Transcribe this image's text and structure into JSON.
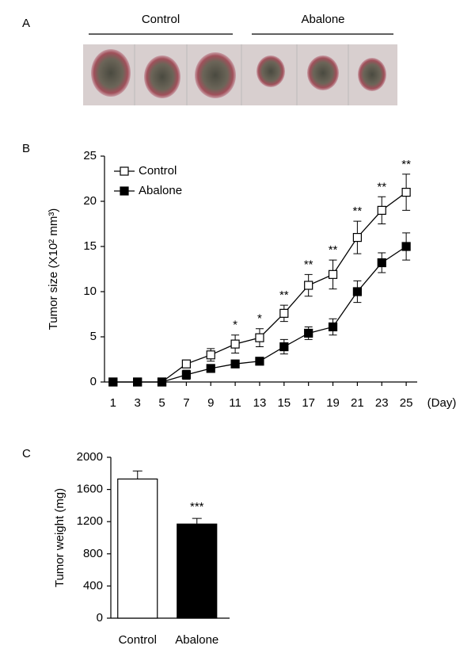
{
  "panel_labels": [
    "A",
    "B",
    "C"
  ],
  "photo": {
    "labels": [
      "Control",
      "Abalone"
    ]
  },
  "chart_data": [
    {
      "type": "line",
      "x": [
        1,
        3,
        5,
        7,
        9,
        11,
        13,
        15,
        17,
        19,
        21,
        23,
        25
      ],
      "xlim": [
        0.3,
        25.9
      ],
      "xticks": [
        1,
        3,
        5,
        7,
        9,
        11,
        13,
        15,
        17,
        19,
        21,
        23,
        25
      ],
      "x_label": "(Day)",
      "y_label": "Tumor size (X10² mm³)",
      "ylim": [
        0,
        25
      ],
      "yticks": [
        0,
        5,
        10,
        15,
        20,
        25
      ],
      "legend": "upper left",
      "series": [
        {
          "name": "Control",
          "color": "#000000",
          "marker_fill": "#ffffff",
          "values": [
            0,
            0,
            0,
            2.0,
            3.0,
            4.2,
            4.9,
            7.6,
            10.7,
            11.9,
            16.0,
            19.0,
            21.0
          ],
          "errors": [
            0,
            0,
            0,
            0.4,
            0.7,
            1.0,
            1.0,
            0.9,
            1.2,
            1.6,
            1.8,
            1.5,
            2.0
          ]
        },
        {
          "name": "Abalone",
          "color": "#000000",
          "marker_fill": "#000000",
          "values": [
            0,
            0,
            0,
            0.8,
            1.5,
            2.0,
            2.3,
            3.9,
            5.4,
            6.1,
            10.0,
            13.2,
            15.0
          ],
          "errors": [
            0,
            0,
            0,
            0.5,
            0.4,
            0.3,
            0.3,
            0.8,
            0.7,
            0.9,
            1.2,
            1.1,
            1.5
          ]
        }
      ],
      "significance": [
        null,
        null,
        null,
        null,
        null,
        "*",
        "*",
        "**",
        "**",
        "**",
        "**",
        "**",
        "**"
      ]
    },
    {
      "type": "bar",
      "categories": [
        "Control",
        "Abalone"
      ],
      "values": [
        1730,
        1170
      ],
      "errors": [
        100,
        70
      ],
      "colors": [
        "#ffffff",
        "#000000"
      ],
      "y_label": "Tumor weight (mg)",
      "ylim": [
        0,
        2000
      ],
      "yticks": [
        0,
        400,
        800,
        1200,
        1600,
        2000
      ],
      "significance": [
        null,
        "***"
      ]
    }
  ]
}
